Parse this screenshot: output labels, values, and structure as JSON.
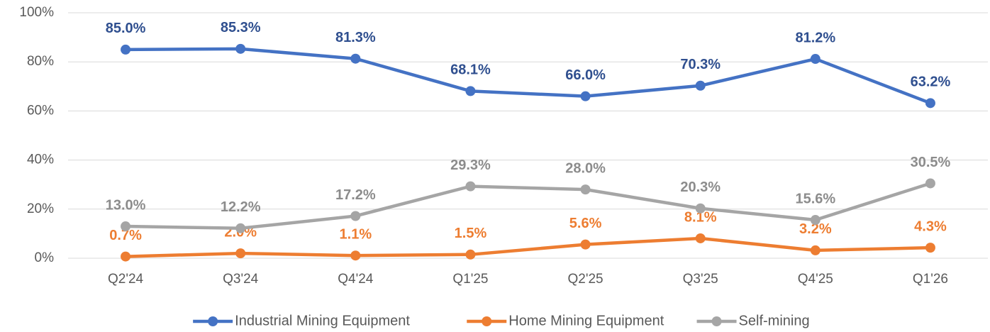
{
  "chart_data": {
    "type": "line",
    "categories": [
      "Q2'24",
      "Q3'24",
      "Q4'24",
      "Q1'25",
      "Q2'25",
      "Q3'25",
      "Q4'25",
      "Q1'26"
    ],
    "series": [
      {
        "name": "Industrial Mining Equipment",
        "color": "#4472c4",
        "label_color": "#2f4f8f",
        "values": [
          85.0,
          85.3,
          81.3,
          68.1,
          66.0,
          70.3,
          81.2,
          63.2
        ],
        "value_labels": [
          "85.0%",
          "85.3%",
          "81.3%",
          "68.1%",
          "66.0%",
          "70.3%",
          "81.2%",
          "63.2%"
        ]
      },
      {
        "name": "Home Mining Equipment",
        "color": "#ed7d31",
        "label_color": "#ed7d31",
        "values": [
          0.7,
          2.0,
          1.1,
          1.5,
          5.6,
          8.1,
          3.2,
          4.3
        ],
        "value_labels": [
          "0.7%",
          "2.0%",
          "1.1%",
          "1.5%",
          "5.6%",
          "8.1%",
          "3.2%",
          "4.3%"
        ]
      },
      {
        "name": "Self-mining",
        "color": "#a5a5a5",
        "label_color": "#8c8c8c",
        "values": [
          13.0,
          12.2,
          17.2,
          29.3,
          28.0,
          20.3,
          15.6,
          30.5
        ],
        "value_labels": [
          "13.0%",
          "12.2%",
          "17.2%",
          "29.3%",
          "28.0%",
          "20.3%",
          "15.6%",
          "30.5%"
        ]
      }
    ],
    "ylim": [
      0,
      100
    ],
    "yticks": [
      {
        "value": 0,
        "label": "0%"
      },
      {
        "value": 20,
        "label": "20%"
      },
      {
        "value": 40,
        "label": "40%"
      },
      {
        "value": 60,
        "label": "60%"
      },
      {
        "value": 80,
        "label": "80%"
      },
      {
        "value": 100,
        "label": "100%"
      }
    ],
    "grid": true,
    "legend": "bottom"
  }
}
